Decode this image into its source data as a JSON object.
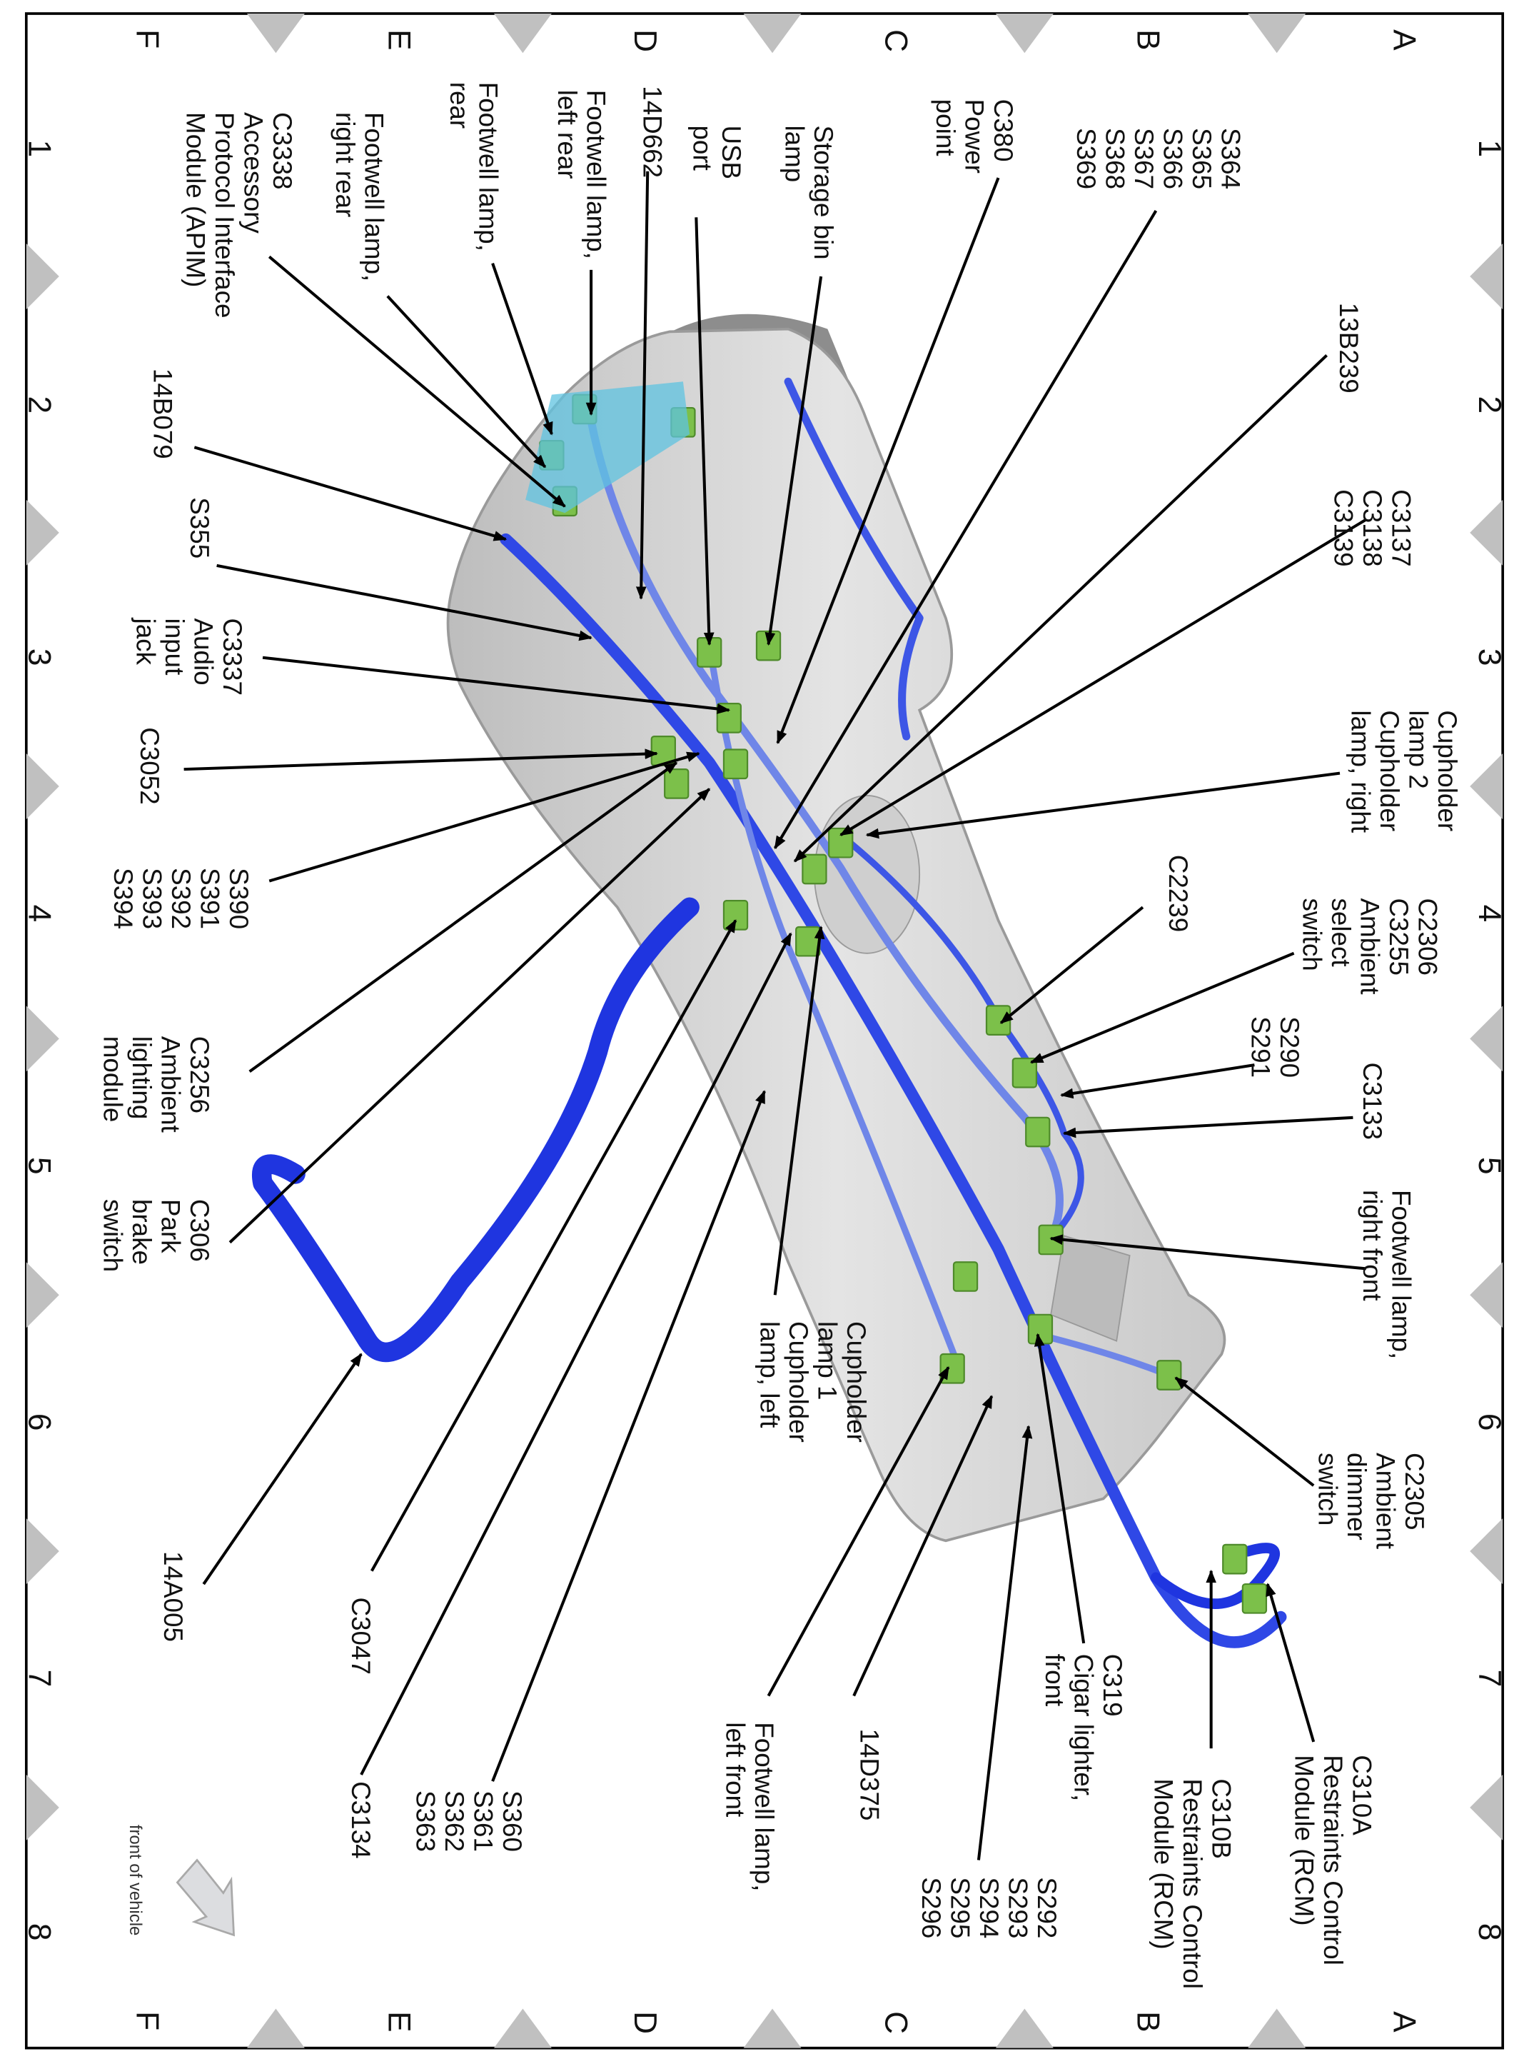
{
  "grid": {
    "rows": [
      "A",
      "B",
      "C",
      "D",
      "E",
      "F"
    ],
    "columns": [
      "1",
      "2",
      "3",
      "4",
      "5",
      "6",
      "7",
      "8"
    ]
  },
  "orientation_note_label": "front of vehicle",
  "colors": {
    "harness": "#1f35e0",
    "harness_light": "#6f86e8",
    "connector": "#7cc04a",
    "console": "#d2d2d2",
    "marker": "#c0c0c0"
  },
  "callouts": [
    {
      "lines": [
        "S364",
        "S365",
        "S366",
        "S367",
        "S368",
        "S369"
      ]
    },
    {
      "lines": [
        "13B239"
      ]
    },
    {
      "lines": [
        "C3137",
        "C3138",
        "C3139"
      ]
    },
    {
      "lines": [
        "Cupholder",
        "lamp 2",
        "Cupholder",
        "lamp, right"
      ]
    },
    {
      "lines": [
        "C2239"
      ]
    },
    {
      "lines": [
        "C2306",
        "C3255",
        "Ambient",
        "select",
        "switch"
      ]
    },
    {
      "lines": [
        "S290",
        "S291"
      ]
    },
    {
      "lines": [
        "C3133"
      ]
    },
    {
      "lines": [
        "Footwell lamp,",
        "right front"
      ]
    },
    {
      "lines": [
        "C2305",
        "Ambient",
        "dimmer",
        "switch"
      ]
    },
    {
      "lines": [
        "C310A",
        "Restraints Control",
        "Module (RCM)"
      ]
    },
    {
      "lines": [
        "C310B",
        "Restraints Control",
        "Module (RCM)"
      ]
    },
    {
      "lines": [
        "C319",
        "Cigar lighter,",
        "front"
      ]
    },
    {
      "lines": [
        "S292",
        "S293",
        "S294",
        "S295",
        "S296"
      ]
    },
    {
      "lines": [
        "14D375"
      ]
    },
    {
      "lines": [
        "Footwell lamp,",
        "left front"
      ]
    },
    {
      "lines": [
        "Cupholder",
        "lamp 1",
        "Cupholder",
        "lamp, left"
      ]
    },
    {
      "lines": [
        "S360",
        "S361",
        "S362",
        "S363"
      ]
    },
    {
      "lines": [
        "C3134"
      ]
    },
    {
      "lines": [
        "C3047"
      ]
    },
    {
      "lines": [
        "14A005"
      ]
    },
    {
      "lines": [
        "C306",
        "Park",
        "brake",
        "switch"
      ]
    },
    {
      "lines": [
        "C3256",
        "Ambient",
        "lighting",
        "module"
      ]
    },
    {
      "lines": [
        "S390",
        "S391",
        "S392",
        "S393",
        "S394"
      ]
    },
    {
      "lines": [
        "C3052"
      ]
    },
    {
      "lines": [
        "C3337",
        "Audio",
        "input",
        "jack"
      ]
    },
    {
      "lines": [
        "S355"
      ]
    },
    {
      "lines": [
        "14B079"
      ]
    },
    {
      "lines": [
        "C3338",
        "Accessory",
        "Protocol Interface",
        "Module (APIM)"
      ]
    },
    {
      "lines": [
        "Footwell lamp,",
        "right rear"
      ]
    },
    {
      "lines": [
        "Footwell lamp,",
        "rear"
      ]
    },
    {
      "lines": [
        "Footwell lamp,",
        "left rear"
      ]
    },
    {
      "lines": [
        "14D662"
      ]
    },
    {
      "lines": [
        "USB",
        "port"
      ]
    },
    {
      "lines": [
        "Storage bin",
        "lamp"
      ]
    },
    {
      "lines": [
        "C380",
        "Power",
        "point"
      ]
    }
  ]
}
